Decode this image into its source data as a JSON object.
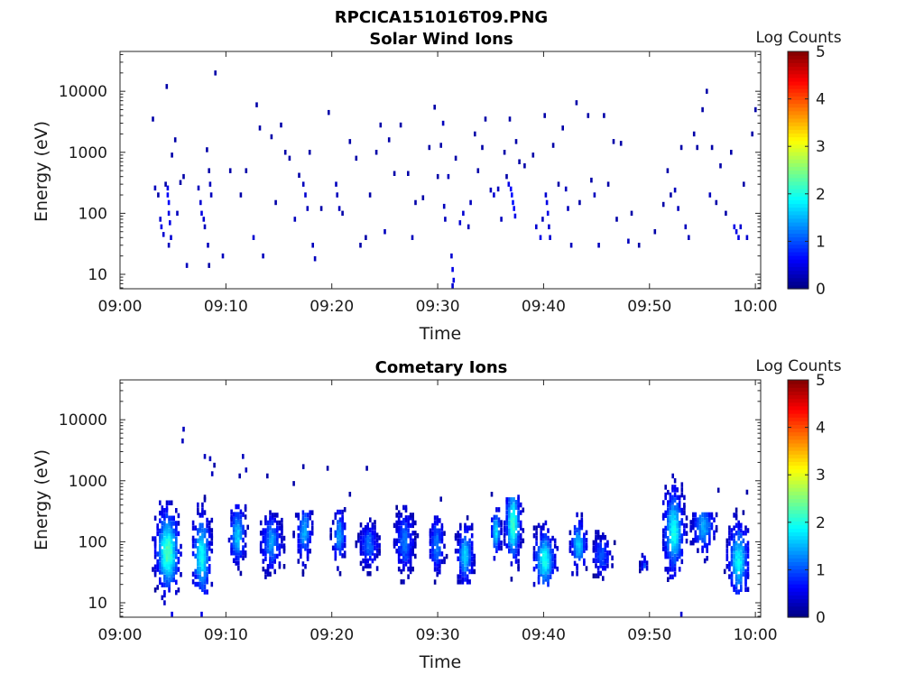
{
  "figure": {
    "title": "RPCICA151016T09.PNG"
  },
  "chart_data": [
    {
      "type": "heatmap",
      "title": "Solar Wind Ions",
      "xlabel": "Time",
      "ylabel": "Energy (eV)",
      "x_ticks": [
        "09:00",
        "09:10",
        "09:20",
        "09:30",
        "09:40",
        "09:50",
        "10:00"
      ],
      "x_range_minutes": [
        0,
        60.5
      ],
      "y_scale": "log",
      "y_ticks": [
        "10",
        "100",
        "1000",
        "10000"
      ],
      "y_range": [
        5.8,
        45000
      ],
      "colorbar": {
        "label": "Log Counts",
        "ticks": [
          "0",
          "1",
          "2",
          "3",
          "4",
          "5"
        ],
        "range": [
          0,
          5
        ],
        "colormap": "jet"
      },
      "grid": false,
      "points": [
        [
          3.0,
          3500,
          0.2
        ],
        [
          3.2,
          260,
          0.3
        ],
        [
          3.5,
          200,
          0.2
        ],
        [
          3.7,
          80,
          0.4
        ],
        [
          3.8,
          60,
          0.5
        ],
        [
          4.0,
          45,
          0.4
        ],
        [
          4.2,
          300,
          0.2
        ],
        [
          4.3,
          12000,
          0.2
        ],
        [
          4.4,
          260,
          0.5
        ],
        [
          4.4,
          200,
          0.6
        ],
        [
          4.5,
          150,
          0.6
        ],
        [
          4.5,
          100,
          0.5
        ],
        [
          4.6,
          70,
          0.5
        ],
        [
          4.7,
          40,
          0.4
        ],
        [
          4.5,
          30,
          0.3
        ],
        [
          4.8,
          900,
          0.2
        ],
        [
          5.1,
          1600,
          0.2
        ],
        [
          5.3,
          100,
          0.3
        ],
        [
          5.6,
          320,
          0.2
        ],
        [
          5.9,
          400,
          0.2
        ],
        [
          6.2,
          14,
          0.3
        ],
        [
          7.3,
          260,
          0.3
        ],
        [
          7.5,
          150,
          0.4
        ],
        [
          7.6,
          100,
          0.5
        ],
        [
          7.8,
          80,
          0.4
        ],
        [
          7.9,
          60,
          0.3
        ],
        [
          8.1,
          1100,
          0.2
        ],
        [
          8.3,
          500,
          0.2
        ],
        [
          8.4,
          300,
          0.3
        ],
        [
          8.5,
          200,
          0.3
        ],
        [
          8.2,
          30,
          0.3
        ],
        [
          8.3,
          14,
          0.2
        ],
        [
          8.9,
          20000,
          0.2
        ],
        [
          9.6,
          20,
          0.3
        ],
        [
          10.3,
          500,
          0.2
        ],
        [
          11.3,
          200,
          0.2
        ],
        [
          11.8,
          500,
          0.2
        ],
        [
          12.5,
          40,
          0.4
        ],
        [
          12.8,
          6000,
          0.2
        ],
        [
          13.1,
          2500,
          0.2
        ],
        [
          13.4,
          20,
          0.3
        ],
        [
          14.2,
          1800,
          0.2
        ],
        [
          14.6,
          150,
          0.2
        ],
        [
          15.1,
          2800,
          0.2
        ],
        [
          15.5,
          1000,
          0.2
        ],
        [
          15.9,
          800,
          0.2
        ],
        [
          16.4,
          80,
          0.3
        ],
        [
          16.8,
          420,
          0.2
        ],
        [
          17.2,
          300,
          0.3
        ],
        [
          17.4,
          200,
          0.4
        ],
        [
          17.6,
          120,
          0.3
        ],
        [
          17.8,
          1000,
          0.2
        ],
        [
          18.1,
          30,
          0.3
        ],
        [
          18.3,
          18,
          0.3
        ],
        [
          18.9,
          120,
          0.2
        ],
        [
          19.6,
          4500,
          0.2
        ],
        [
          20.3,
          300,
          0.3
        ],
        [
          20.4,
          200,
          0.3
        ],
        [
          20.6,
          120,
          0.3
        ],
        [
          20.9,
          100,
          0.2
        ],
        [
          21.6,
          1500,
          0.2
        ],
        [
          22.2,
          800,
          0.2
        ],
        [
          22.6,
          30,
          0.2
        ],
        [
          23.1,
          40,
          0.2
        ],
        [
          23.5,
          200,
          0.2
        ],
        [
          24.1,
          1000,
          0.2
        ],
        [
          24.5,
          2800,
          0.2
        ],
        [
          24.9,
          50,
          0.3
        ],
        [
          25.3,
          1600,
          0.2
        ],
        [
          25.8,
          450,
          0.2
        ],
        [
          26.4,
          2800,
          0.2
        ],
        [
          27.1,
          450,
          0.2
        ],
        [
          27.5,
          40,
          0.3
        ],
        [
          27.8,
          150,
          0.2
        ],
        [
          28.5,
          180,
          0.2
        ],
        [
          29.1,
          1200,
          0.2
        ],
        [
          29.6,
          5500,
          0.2
        ],
        [
          29.9,
          400,
          0.2
        ],
        [
          30.2,
          1300,
          0.2
        ],
        [
          30.4,
          3000,
          0.3
        ],
        [
          30.5,
          130,
          0.3
        ],
        [
          30.6,
          80,
          0.3
        ],
        [
          30.9,
          400,
          0.3
        ],
        [
          31.2,
          20,
          0.4
        ],
        [
          31.3,
          12,
          0.5
        ],
        [
          31.4,
          8,
          0.5
        ],
        [
          31.3,
          6.5,
          0.4
        ],
        [
          31.6,
          800,
          0.2
        ],
        [
          32.0,
          70,
          0.4
        ],
        [
          32.3,
          100,
          0.4
        ],
        [
          32.8,
          60,
          0.3
        ],
        [
          33.0,
          150,
          0.3
        ],
        [
          33.4,
          2000,
          0.2
        ],
        [
          33.7,
          500,
          0.2
        ],
        [
          34.1,
          1200,
          0.2
        ],
        [
          34.4,
          3500,
          0.2
        ],
        [
          34.9,
          240,
          0.3
        ],
        [
          35.2,
          200,
          0.4
        ],
        [
          35.6,
          250,
          0.3
        ],
        [
          35.9,
          80,
          0.3
        ],
        [
          36.2,
          1000,
          0.2
        ],
        [
          36.4,
          400,
          0.2
        ],
        [
          36.6,
          300,
          0.5
        ],
        [
          36.8,
          250,
          0.6
        ],
        [
          36.9,
          200,
          0.7
        ],
        [
          37.0,
          150,
          0.7
        ],
        [
          37.1,
          120,
          0.6
        ],
        [
          37.2,
          90,
          0.5
        ],
        [
          36.7,
          3500,
          0.2
        ],
        [
          37.3,
          1500,
          0.2
        ],
        [
          37.6,
          700,
          0.2
        ],
        [
          38.1,
          600,
          0.2
        ],
        [
          38.9,
          900,
          0.2
        ],
        [
          39.2,
          60,
          0.4
        ],
        [
          39.6,
          40,
          0.5
        ],
        [
          39.8,
          80,
          0.3
        ],
        [
          40.1,
          200,
          0.4
        ],
        [
          40.2,
          150,
          0.5
        ],
        [
          40.3,
          100,
          0.5
        ],
        [
          40.4,
          60,
          0.4
        ],
        [
          40.5,
          40,
          0.4
        ],
        [
          40.0,
          4000,
          0.2
        ],
        [
          40.8,
          1300,
          0.2
        ],
        [
          41.3,
          300,
          0.2
        ],
        [
          41.7,
          2500,
          0.2
        ],
        [
          42.0,
          250,
          0.3
        ],
        [
          42.2,
          120,
          0.3
        ],
        [
          42.5,
          30,
          0.3
        ],
        [
          43.0,
          6500,
          0.2
        ],
        [
          43.3,
          150,
          0.2
        ],
        [
          44.1,
          4000,
          0.2
        ],
        [
          44.4,
          350,
          0.2
        ],
        [
          44.7,
          200,
          0.3
        ],
        [
          45.1,
          30,
          0.3
        ],
        [
          45.6,
          4000,
          0.2
        ],
        [
          46.0,
          300,
          0.2
        ],
        [
          46.5,
          1500,
          0.2
        ],
        [
          46.8,
          80,
          0.2
        ],
        [
          47.2,
          1400,
          0.2
        ],
        [
          47.9,
          35,
          0.3
        ],
        [
          48.2,
          100,
          0.2
        ],
        [
          48.9,
          30,
          0.2
        ],
        [
          50.4,
          50,
          0.2
        ],
        [
          51.2,
          140,
          0.2
        ],
        [
          51.6,
          500,
          0.2
        ],
        [
          51.9,
          200,
          0.2
        ],
        [
          52.3,
          240,
          0.3
        ],
        [
          52.6,
          120,
          0.3
        ],
        [
          52.9,
          1200,
          0.2
        ],
        [
          53.3,
          60,
          0.3
        ],
        [
          53.6,
          40,
          0.3
        ],
        [
          54.1,
          2000,
          0.2
        ],
        [
          54.4,
          1200,
          0.2
        ],
        [
          54.9,
          5000,
          0.2
        ],
        [
          55.3,
          10000,
          0.2
        ],
        [
          55.6,
          200,
          0.3
        ],
        [
          55.8,
          1200,
          0.2
        ],
        [
          56.2,
          150,
          0.2
        ],
        [
          56.6,
          600,
          0.2
        ],
        [
          57.1,
          100,
          0.2
        ],
        [
          57.6,
          1000,
          0.2
        ],
        [
          57.9,
          60,
          0.5
        ],
        [
          58.1,
          50,
          0.5
        ],
        [
          58.3,
          40,
          0.5
        ],
        [
          58.5,
          60,
          0.4
        ],
        [
          58.8,
          300,
          0.2
        ],
        [
          59.1,
          40,
          0.4
        ],
        [
          59.6,
          2000,
          0.2
        ],
        [
          59.9,
          5000,
          0.2
        ]
      ]
    },
    {
      "type": "heatmap",
      "title": "Cometary Ions",
      "xlabel": "Time",
      "ylabel": "Energy (eV)",
      "x_ticks": [
        "09:00",
        "09:10",
        "09:20",
        "09:30",
        "09:40",
        "09:50",
        "10:00"
      ],
      "x_range_minutes": [
        0,
        60.5
      ],
      "y_scale": "log",
      "y_ticks": [
        "10",
        "100",
        "1000",
        "10000"
      ],
      "y_range": [
        5.8,
        45000
      ],
      "colorbar": {
        "label": "Log Counts",
        "ticks": [
          "0",
          "1",
          "2",
          "3",
          "4",
          "5"
        ],
        "range": [
          0,
          5
        ],
        "colormap": "jet"
      },
      "grid": false,
      "bursts": [
        {
          "t": [
            3.0,
            5.8
          ],
          "e": [
            10,
            450
          ],
          "peak": 2.1,
          "peak_t": 4.4,
          "peak_e": 70
        },
        {
          "t": [
            6.8,
            8.9
          ],
          "e": [
            15,
            800
          ],
          "peak": 1.8,
          "peak_t": 7.6,
          "peak_e": 60
        },
        {
          "t": [
            10.2,
            12.0
          ],
          "e": [
            25,
            400
          ],
          "peak": 1.5,
          "peak_t": 11.0,
          "peak_e": 130
        },
        {
          "t": [
            13.2,
            15.6
          ],
          "e": [
            20,
            300
          ],
          "peak": 1.2,
          "peak_t": 14.2,
          "peak_e": 100
        },
        {
          "t": [
            16.3,
            18.1
          ],
          "e": [
            20,
            300
          ],
          "peak": 1.3,
          "peak_t": 17.3,
          "peak_e": 150
        },
        {
          "t": [
            19.8,
            21.3
          ],
          "e": [
            30,
            350
          ],
          "peak": 1.3,
          "peak_t": 20.6,
          "peak_e": 130
        },
        {
          "t": [
            22.2,
            24.4
          ],
          "e": [
            30,
            250
          ],
          "peak": 1.0,
          "peak_t": 23.4,
          "peak_e": 90
        },
        {
          "t": [
            25.8,
            28.0
          ],
          "e": [
            20,
            400
          ],
          "peak": 1.0,
          "peak_t": 26.8,
          "peak_e": 100
        },
        {
          "t": [
            29.2,
            30.9
          ],
          "e": [
            18,
            250
          ],
          "peak": 1.1,
          "peak_t": 29.8,
          "peak_e": 90
        },
        {
          "t": [
            31.6,
            33.5
          ],
          "e": [
            20,
            300
          ],
          "peak": 1.5,
          "peak_t": 32.5,
          "peak_e": 60
        },
        {
          "t": [
            34.8,
            36.0
          ],
          "e": [
            40,
            350
          ],
          "peak": 1.6,
          "peak_t": 35.4,
          "peak_e": 150
        },
        {
          "t": [
            36.2,
            38.0
          ],
          "e": [
            15,
            550
          ],
          "peak": 2.0,
          "peak_t": 37.0,
          "peak_e": 200
        },
        {
          "t": [
            39.0,
            41.4
          ],
          "e": [
            20,
            350
          ],
          "peak": 1.8,
          "peak_t": 40.0,
          "peak_e": 50
        },
        {
          "t": [
            42.4,
            44.2
          ],
          "e": [
            30,
            300
          ],
          "peak": 1.5,
          "peak_t": 43.2,
          "peak_e": 90
        },
        {
          "t": [
            44.4,
            46.6
          ],
          "e": [
            25,
            150
          ],
          "peak": 0.9,
          "peak_t": 45.4,
          "peak_e": 60
        },
        {
          "t": [
            49.0,
            49.8
          ],
          "e": [
            25,
            70
          ],
          "peak": 0.8,
          "peak_t": 49.4,
          "peak_e": 40
        },
        {
          "t": [
            51.2,
            53.6
          ],
          "e": [
            18,
            900
          ],
          "peak": 1.8,
          "peak_t": 52.2,
          "peak_e": 150
        },
        {
          "t": [
            53.8,
            56.4
          ],
          "e": [
            30,
            300
          ],
          "peak": 1.3,
          "peak_t": 55.0,
          "peak_e": 180
        },
        {
          "t": [
            57.0,
            59.4
          ],
          "e": [
            15,
            500
          ],
          "peak": 1.7,
          "peak_t": 58.3,
          "peak_e": 50
        }
      ],
      "points": [
        [
          5.9,
          7000,
          0.3
        ],
        [
          5.8,
          4500,
          0.3
        ],
        [
          7.9,
          2500,
          0.3
        ],
        [
          8.4,
          2300,
          0.3
        ],
        [
          8.8,
          1800,
          0.2
        ],
        [
          8.6,
          1300,
          0.3
        ],
        [
          11.5,
          2500,
          0.3
        ],
        [
          11.8,
          1500,
          0.3
        ],
        [
          11.2,
          1200,
          0.2
        ],
        [
          17.2,
          1700,
          0.2
        ],
        [
          19.5,
          1600,
          0.2
        ],
        [
          23.2,
          1600,
          0.2
        ],
        [
          35.0,
          600,
          0.2
        ],
        [
          52.1,
          1200,
          0.3
        ],
        [
          52.3,
          1000,
          0.3
        ],
        [
          56.4,
          700,
          0.2
        ],
        [
          59.1,
          650,
          0.2
        ],
        [
          4.8,
          6.5,
          0.5
        ],
        [
          7.6,
          6.5,
          0.5
        ],
        [
          52.9,
          6.5,
          0.4
        ],
        [
          16.3,
          900,
          0.2
        ],
        [
          13.8,
          1200,
          0.2
        ],
        [
          30.2,
          500,
          0.2
        ],
        [
          21.6,
          600,
          0.2
        ]
      ]
    }
  ]
}
